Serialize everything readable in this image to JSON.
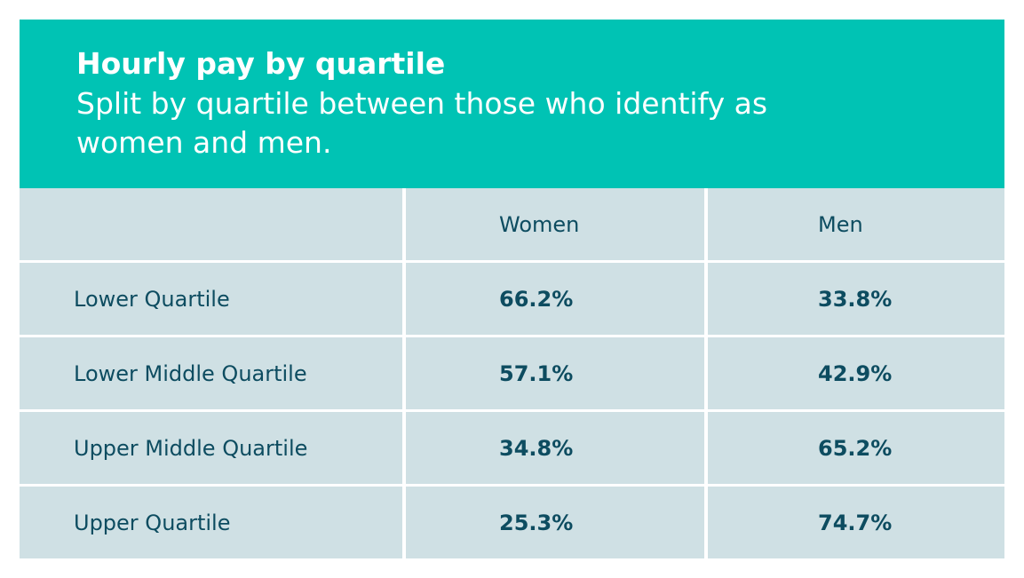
{
  "header": {
    "title": "Hourly pay by quartile",
    "subtitle": "Split by quartile between those who identify as women and men."
  },
  "table": {
    "columns": [
      "Women",
      "Men"
    ],
    "rows": [
      [
        "Lower Quartile",
        "66.2%",
        "33.8%"
      ],
      [
        "Lower Middle Quartile",
        "57.1%",
        "42.9%"
      ],
      [
        "Upper Middle Quartile",
        "34.8%",
        "65.2%"
      ],
      [
        "Upper Quartile",
        "25.3%",
        "74.7%"
      ]
    ]
  }
}
